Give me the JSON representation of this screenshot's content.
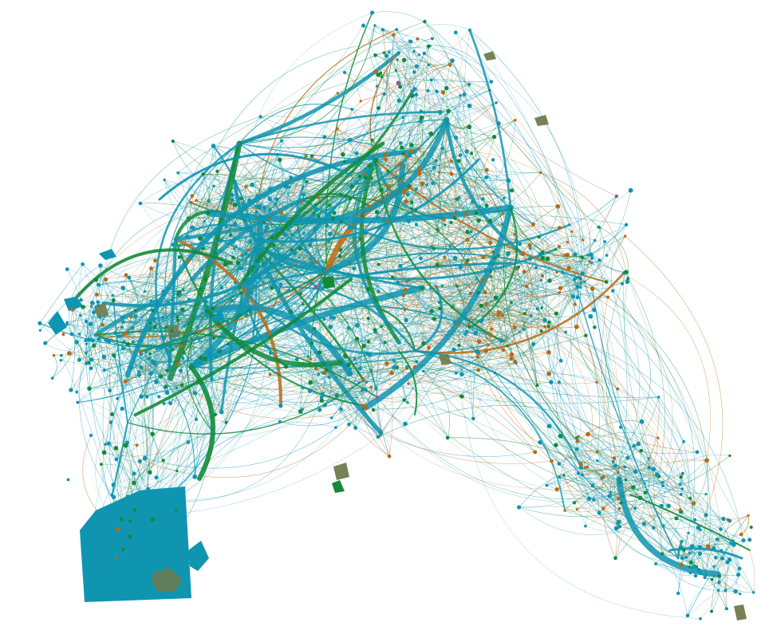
{
  "graph": {
    "type": "force-directed-network",
    "background": "#ffffff",
    "palette": {
      "teal": "#0f95b0",
      "green": "#14893a",
      "orange": "#b86a14",
      "olive": "#6f7a4d",
      "purple": "#8e5aa0"
    },
    "legend": [],
    "labels": []
  }
}
